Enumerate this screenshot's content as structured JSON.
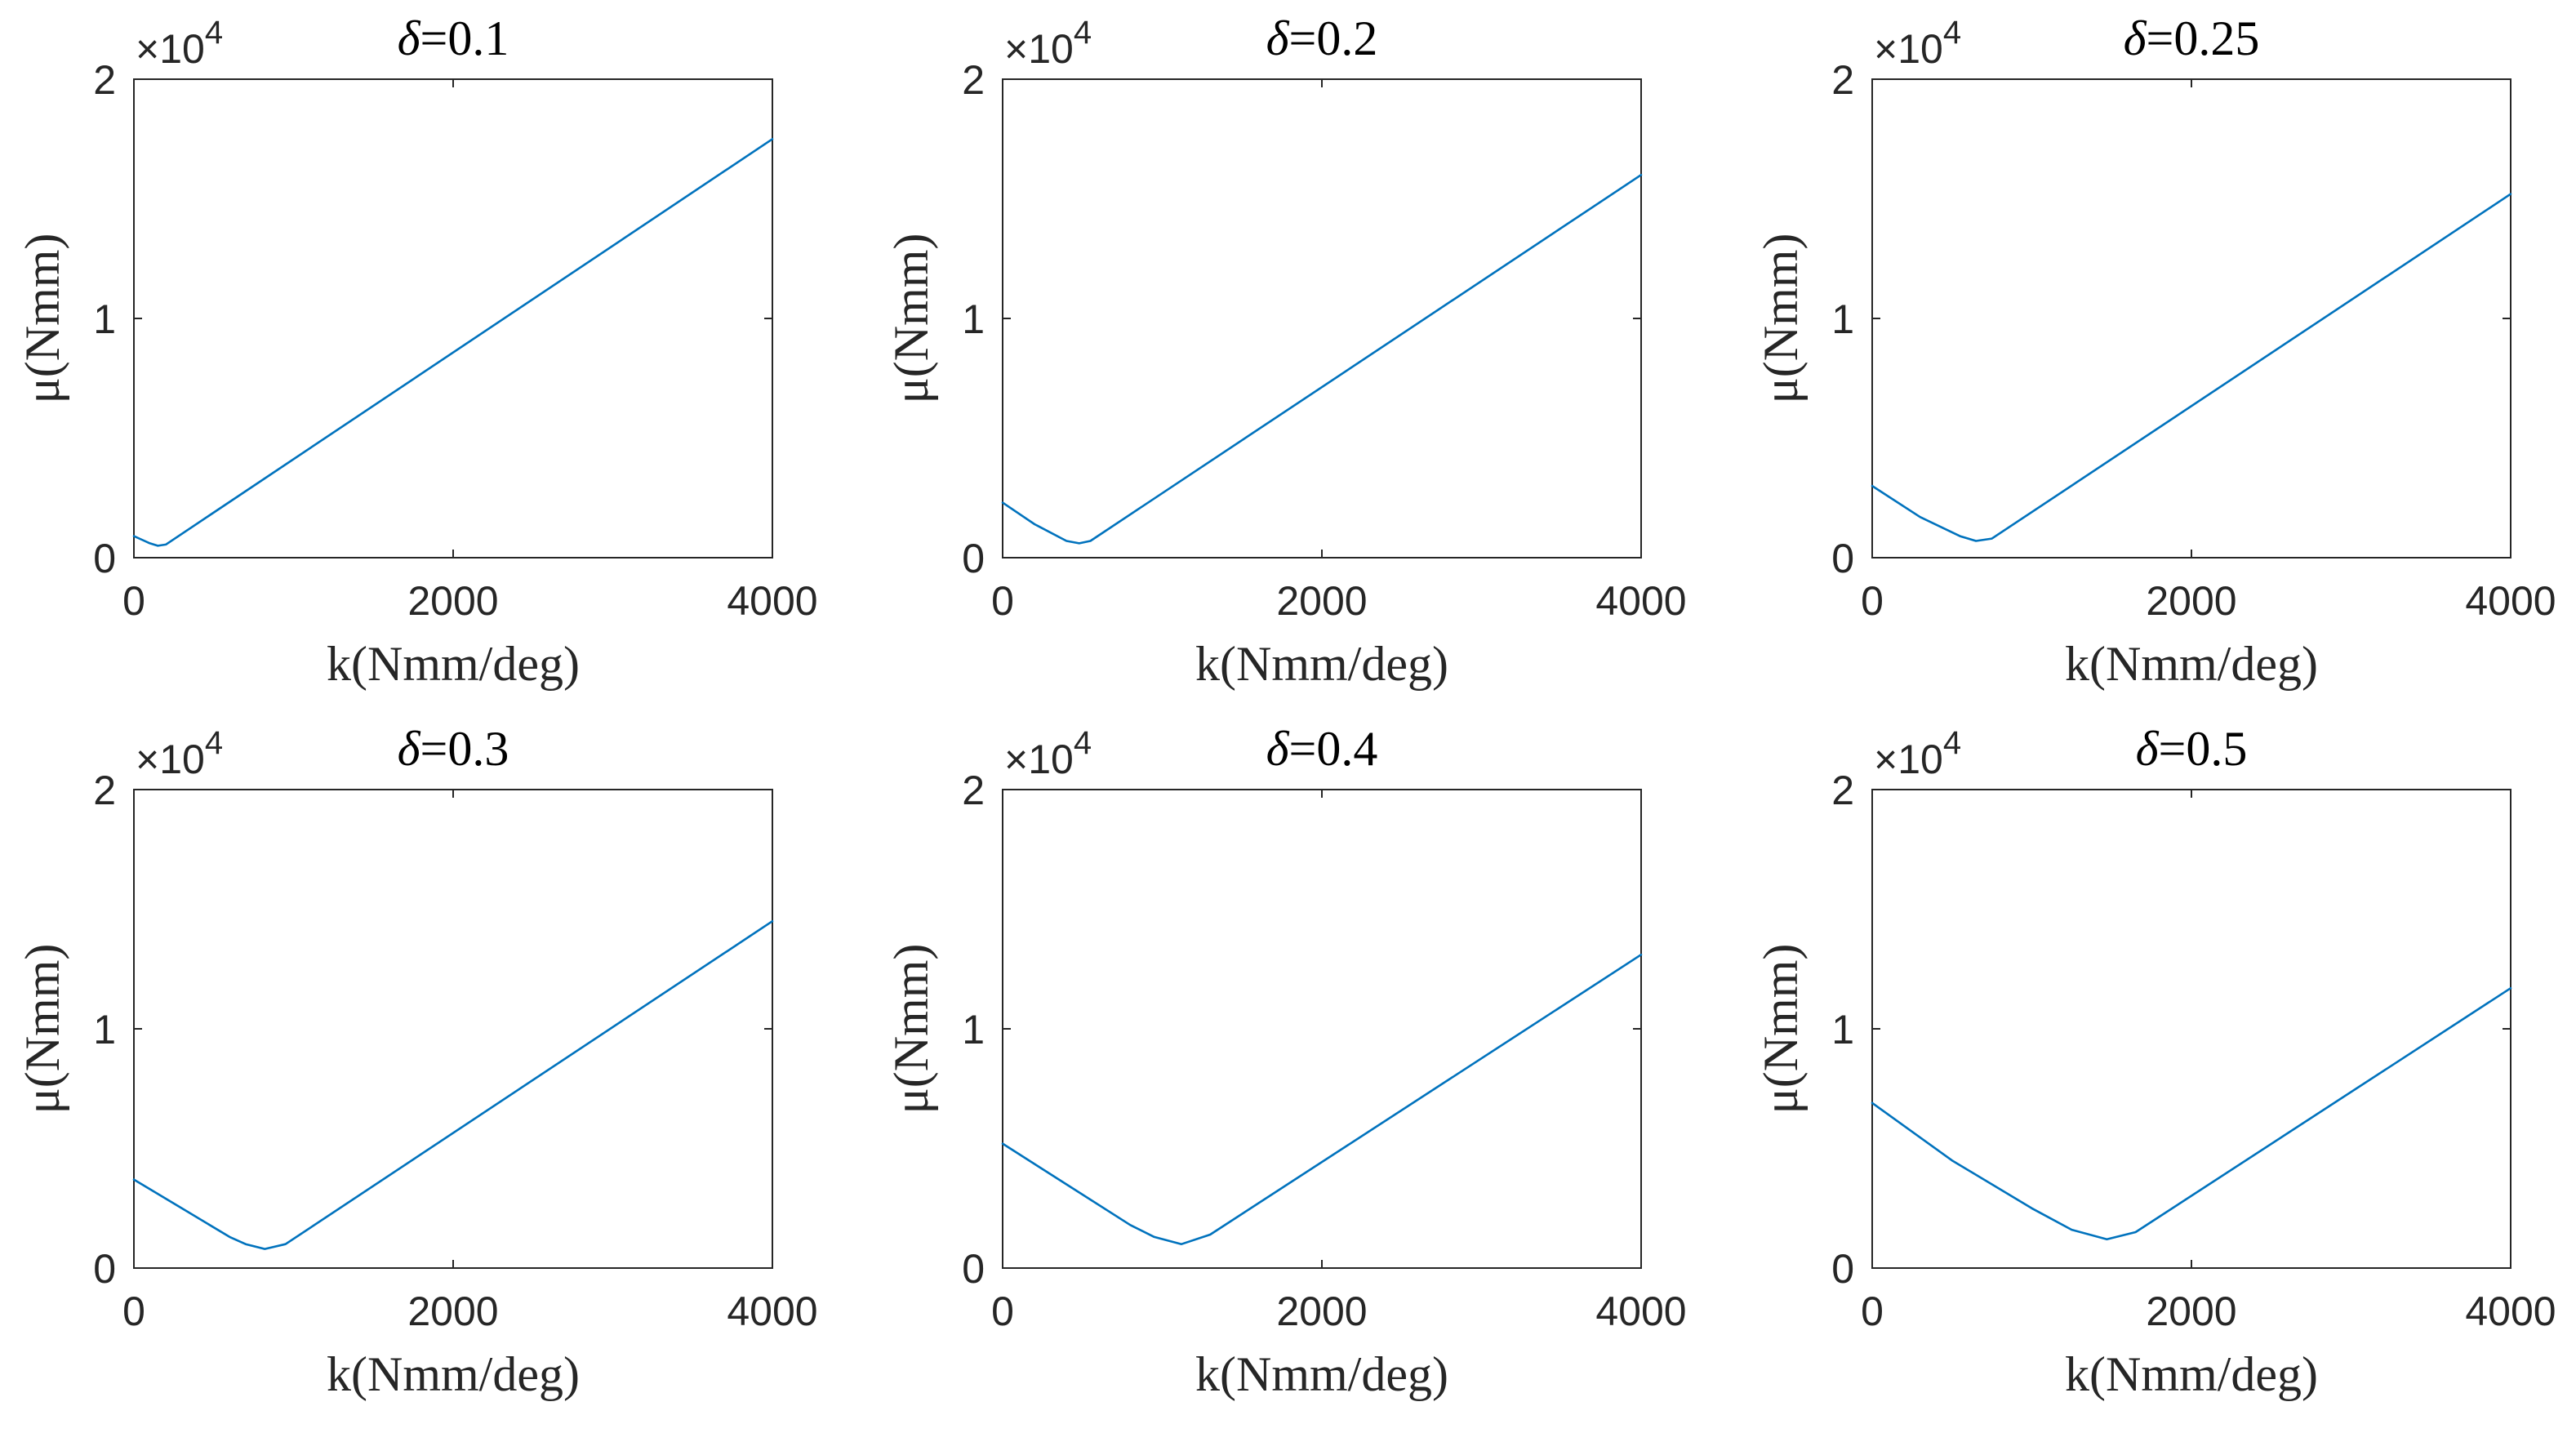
{
  "figure": {
    "line_color": "#0072BD",
    "axis_color": "#262626"
  },
  "chart_data": [
    {
      "type": "line",
      "title_symbol": "δ",
      "title_value": "=0.1",
      "xlabel": "k(Nmm/deg)",
      "ylabel": "μ(Nmm)",
      "xlim": [
        0,
        4000
      ],
      "ylim": [
        0,
        20000
      ],
      "x_ticks": [
        0,
        2000,
        4000
      ],
      "y_ticks": [
        0,
        1,
        2
      ],
      "y_exponent": "×10",
      "y_exponent_power": "4",
      "series": [
        {
          "name": "μ",
          "x": [
            0,
            50,
            100,
            150,
            200,
            4000
          ],
          "y": [
            900,
            750,
            600,
            500,
            550,
            17500
          ]
        }
      ]
    },
    {
      "type": "line",
      "title_symbol": "δ",
      "title_value": "=0.2",
      "xlabel": "k(Nmm/deg)",
      "ylabel": "μ(Nmm)",
      "xlim": [
        0,
        4000
      ],
      "ylim": [
        0,
        20000
      ],
      "x_ticks": [
        0,
        2000,
        4000
      ],
      "y_ticks": [
        0,
        1,
        2
      ],
      "y_exponent": "×10",
      "y_exponent_power": "4",
      "series": [
        {
          "name": "μ",
          "x": [
            0,
            200,
            400,
            480,
            550,
            4000
          ],
          "y": [
            2300,
            1400,
            700,
            600,
            700,
            16000
          ]
        }
      ]
    },
    {
      "type": "line",
      "title_symbol": "δ",
      "title_value": "=0.25",
      "xlabel": "k(Nmm/deg)",
      "ylabel": "μ(Nmm)",
      "xlim": [
        0,
        4000
      ],
      "ylim": [
        0,
        20000
      ],
      "x_ticks": [
        0,
        2000,
        4000
      ],
      "y_ticks": [
        0,
        1,
        2
      ],
      "y_exponent": "×10",
      "y_exponent_power": "4",
      "series": [
        {
          "name": "μ",
          "x": [
            0,
            300,
            550,
            650,
            750,
            4000
          ],
          "y": [
            3000,
            1700,
            900,
            700,
            800,
            15200
          ]
        }
      ]
    },
    {
      "type": "line",
      "title_symbol": "δ",
      "title_value": "=0.3",
      "xlabel": "k(Nmm/deg)",
      "ylabel": "μ(Nmm)",
      "xlim": [
        0,
        4000
      ],
      "ylim": [
        0,
        20000
      ],
      "x_ticks": [
        0,
        2000,
        4000
      ],
      "y_ticks": [
        0,
        1,
        2
      ],
      "y_exponent": "×10",
      "y_exponent_power": "4",
      "series": [
        {
          "name": "μ",
          "x": [
            0,
            300,
            600,
            700,
            820,
            950,
            4000
          ],
          "y": [
            3700,
            2500,
            1300,
            1000,
            800,
            1000,
            14500
          ]
        }
      ]
    },
    {
      "type": "line",
      "title_symbol": "δ",
      "title_value": "=0.4",
      "xlabel": "k(Nmm/deg)",
      "ylabel": "μ(Nmm)",
      "xlim": [
        0,
        4000
      ],
      "ylim": [
        0,
        20000
      ],
      "x_ticks": [
        0,
        2000,
        4000
      ],
      "y_ticks": [
        0,
        1,
        2
      ],
      "y_exponent": "×10",
      "y_exponent_power": "4",
      "series": [
        {
          "name": "μ",
          "x": [
            0,
            400,
            800,
            950,
            1120,
            1300,
            4000
          ],
          "y": [
            5200,
            3500,
            1800,
            1300,
            1000,
            1400,
            13100
          ]
        }
      ]
    },
    {
      "type": "line",
      "title_symbol": "δ",
      "title_value": "=0.5",
      "xlabel": "k(Nmm/deg)",
      "ylabel": "μ(Nmm)",
      "xlim": [
        0,
        4000
      ],
      "ylim": [
        0,
        20000
      ],
      "x_ticks": [
        0,
        2000,
        4000
      ],
      "y_ticks": [
        0,
        1,
        2
      ],
      "y_exponent": "×10",
      "y_exponent_power": "4",
      "series": [
        {
          "name": "μ",
          "x": [
            0,
            500,
            1000,
            1250,
            1470,
            1650,
            4000
          ],
          "y": [
            6900,
            4500,
            2500,
            1600,
            1200,
            1500,
            11700
          ]
        }
      ]
    }
  ]
}
